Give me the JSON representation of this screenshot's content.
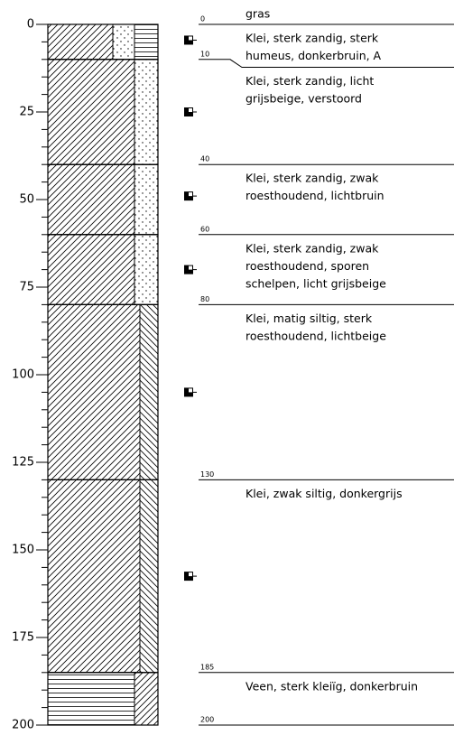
{
  "surface": "gras",
  "depth_axis": {
    "range": [
      0,
      200
    ],
    "ticks": [
      0,
      25,
      50,
      75,
      100,
      125,
      150,
      175,
      200
    ],
    "minor_ticks": [
      0,
      5,
      10,
      15,
      20,
      25,
      30,
      35,
      40,
      45,
      50,
      55,
      60,
      65,
      70,
      75,
      80,
      85,
      90,
      95,
      100,
      105,
      110,
      115,
      120,
      125,
      130,
      135,
      140,
      145,
      150,
      155,
      160,
      165,
      170,
      175,
      180,
      185,
      190,
      195,
      200
    ]
  },
  "layers": [
    {
      "top": 0,
      "bottom": 10,
      "description": [
        "Klei, sterk zandig, sterk",
        "humeus, donkerbruin, A"
      ]
    },
    {
      "top": 10,
      "bottom": 40,
      "description": [
        "Klei, sterk zandig, licht",
        "grijsbeige, verstoord"
      ]
    },
    {
      "top": 40,
      "bottom": 60,
      "description": [
        "Klei, sterk zandig, zwak",
        "roesthoudend, lichtbruin"
      ]
    },
    {
      "top": 60,
      "bottom": 80,
      "description": [
        "Klei, sterk zandig, zwak",
        "roesthoudend, sporen",
        "schelpen, licht grijsbeige"
      ]
    },
    {
      "top": 80,
      "bottom": 130,
      "description": [
        "Klei, matig siltig, sterk",
        "roesthoudend, lichtbeige"
      ]
    },
    {
      "top": 130,
      "bottom": 185,
      "description": [
        "Klei, zwak siltig, donkergrijs"
      ]
    },
    {
      "top": 185,
      "bottom": 200,
      "description": [
        "Veen, sterk kleiïg, donkerbruin"
      ]
    }
  ],
  "samples": [
    4.5,
    25,
    49,
    70,
    105,
    157.5
  ]
}
